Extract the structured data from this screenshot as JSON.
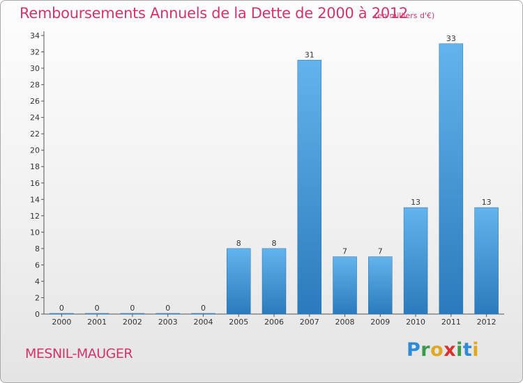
{
  "header": {
    "title": "Remboursements Annuels de la Dette de 2000 à 2012",
    "subtitle": "(en milliers d'€)"
  },
  "footer": {
    "commune": "MESNIL-MAUGER",
    "logo_text": "Proxiti"
  },
  "colors": {
    "title": "#d0346d",
    "bar_light": "#63b3ec",
    "bar_dark": "#2a7bbd",
    "gridline": "#cccccc"
  },
  "chart_data": {
    "type": "bar",
    "title": "Remboursements Annuels de la Dette de 2000 à 2012",
    "subtitle": "(en milliers d'€)",
    "xlabel": "",
    "ylabel": "",
    "categories": [
      "2000",
      "2001",
      "2002",
      "2003",
      "2004",
      "2005",
      "2006",
      "2007",
      "2008",
      "2009",
      "2010",
      "2011",
      "2012"
    ],
    "values": [
      0,
      0,
      0,
      0,
      0,
      8,
      8,
      31,
      7,
      7,
      13,
      33,
      13
    ],
    "ylim": [
      0,
      34
    ],
    "yticks": [
      0,
      2,
      4,
      6,
      8,
      10,
      12,
      14,
      16,
      18,
      20,
      22,
      24,
      26,
      28,
      30,
      32,
      34
    ],
    "grid": false,
    "legend": "none"
  }
}
